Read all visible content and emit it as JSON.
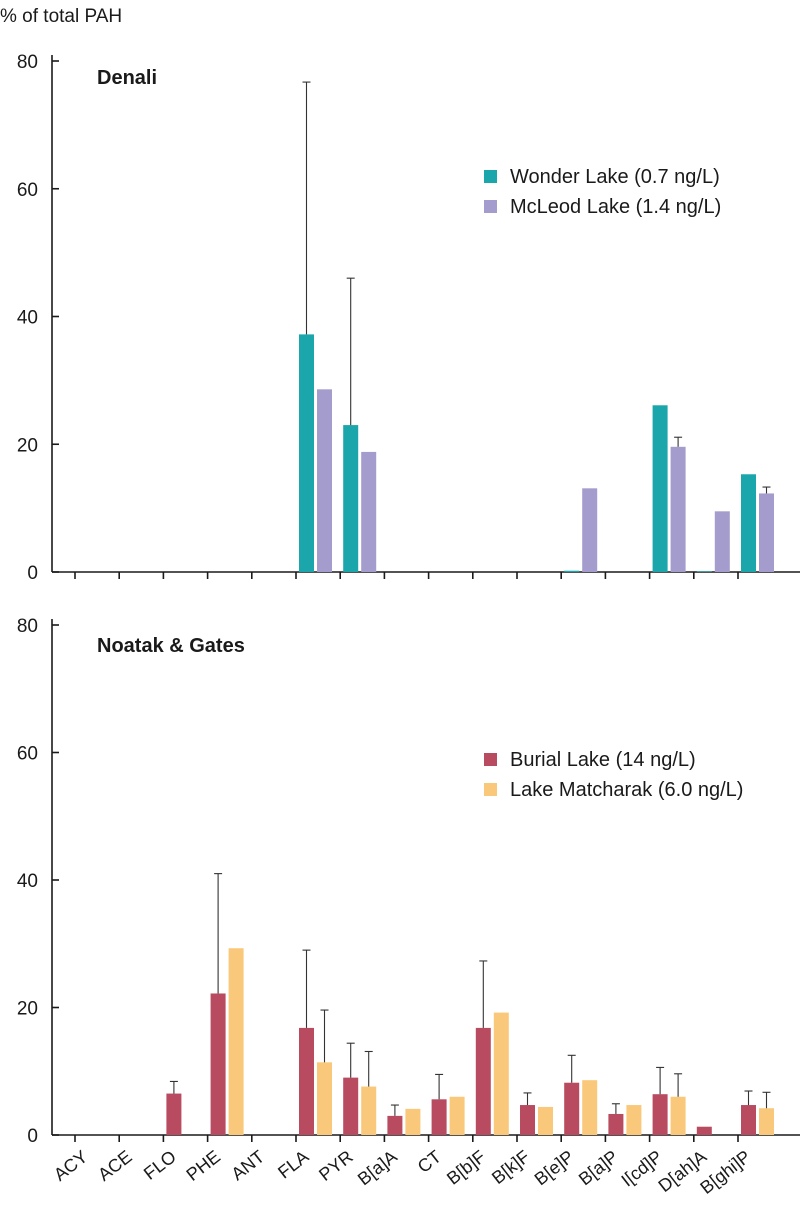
{
  "chart_data": {
    "type": "bar",
    "ylabel": "% of total PAH",
    "ylim": [
      0,
      80
    ],
    "yticks": [
      "0",
      "20",
      "40",
      "60",
      "80"
    ],
    "categories": [
      "ACY",
      "ACE",
      "FLO",
      "PHE",
      "ANT",
      "FLA",
      "PYR",
      "B[a]A",
      "CT",
      "B[b]F",
      "B[k]F",
      "B[e]P",
      "B[a]P",
      "I[cd]P",
      "D[ah]A",
      "B[ghi]P"
    ],
    "panels": [
      {
        "title": "Denali",
        "legend_position": "top-right",
        "series": [
          {
            "name": "Wonder Lake (0.7 ng/L)",
            "color": "#1aa6ab",
            "values": [
              0,
              0,
              0,
              0,
              0,
              37.2,
              23,
              0,
              0,
              0,
              0,
              0.2,
              0,
              26.1,
              0.1,
              15.3
            ],
            "err": [
              null,
              null,
              null,
              null,
              null,
              39.5,
              23,
              null,
              null,
              null,
              null,
              null,
              null,
              null,
              null,
              null
            ]
          },
          {
            "name": "McLeod Lake (1.4 ng/L)",
            "color": "#a49ccc",
            "values": [
              0,
              0,
              0,
              0,
              0,
              28.6,
              18.8,
              0,
              0,
              0,
              0,
              13.1,
              0,
              19.6,
              9.5,
              12.3
            ],
            "err": [
              null,
              null,
              null,
              null,
              null,
              null,
              null,
              null,
              null,
              null,
              null,
              null,
              null,
              1.5,
              null,
              1
            ]
          }
        ]
      },
      {
        "title": "Noatak & Gates",
        "legend_position": "top-right",
        "series": [
          {
            "name": "Burial Lake (14 ng/L)",
            "color": "#b84b5f",
            "values": [
              0,
              0,
              6.5,
              22.2,
              0,
              16.8,
              9,
              3,
              5.6,
              16.8,
              4.7,
              8.2,
              3.3,
              6.4,
              1.3,
              4.7
            ],
            "err": [
              null,
              null,
              1.9,
              18.8,
              null,
              12.2,
              5.4,
              1.7,
              3.9,
              10.5,
              1.9,
              4.3,
              1.6,
              4.2,
              null,
              2.2
            ]
          },
          {
            "name": "Lake Matcharak (6.0 ng/L)",
            "color": "#fac87a",
            "values": [
              0,
              0,
              0,
              29.3,
              0,
              11.4,
              7.6,
              4.1,
              6,
              19.2,
              4.4,
              8.6,
              4.7,
              6,
              0,
              4.2
            ],
            "err": [
              null,
              null,
              null,
              null,
              null,
              8.2,
              5.5,
              null,
              null,
              null,
              null,
              null,
              null,
              3.6,
              null,
              2.5
            ]
          }
        ]
      }
    ]
  }
}
